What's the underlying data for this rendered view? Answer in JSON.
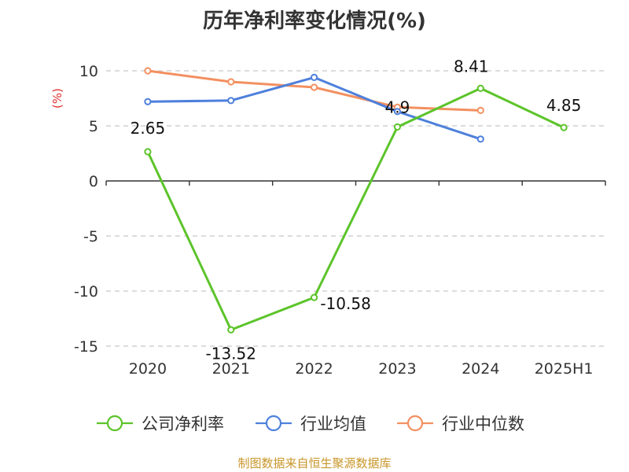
{
  "title": "历年净利率变化情况(%)",
  "footer": "制图数据来自恒生聚源数据库",
  "chart_data": {
    "type": "line",
    "ylabel": "(%)",
    "categories": [
      "2020",
      "2021",
      "2022",
      "2023",
      "2024",
      "2025H1"
    ],
    "ylim": [
      -15,
      10
    ],
    "yticks": [
      10,
      5,
      0,
      -5,
      -10,
      -15
    ],
    "grid": true,
    "legend_position": "bottom",
    "series": [
      {
        "name": "公司净利率",
        "color": "#5cc42a",
        "values": [
          2.65,
          -13.52,
          -10.58,
          4.9,
          8.41,
          4.85
        ],
        "labels": [
          "2.65",
          "-13.52",
          "-10.58",
          "4.9",
          "8.41",
          "4.85"
        ]
      },
      {
        "name": "行业均值",
        "color": "#4e80dc",
        "values": [
          7.2,
          7.3,
          9.4,
          6.3,
          3.8,
          null
        ]
      },
      {
        "name": "行业中位数",
        "color": "#f39060",
        "values": [
          10.0,
          9.0,
          8.5,
          6.7,
          6.4,
          null
        ]
      }
    ]
  }
}
